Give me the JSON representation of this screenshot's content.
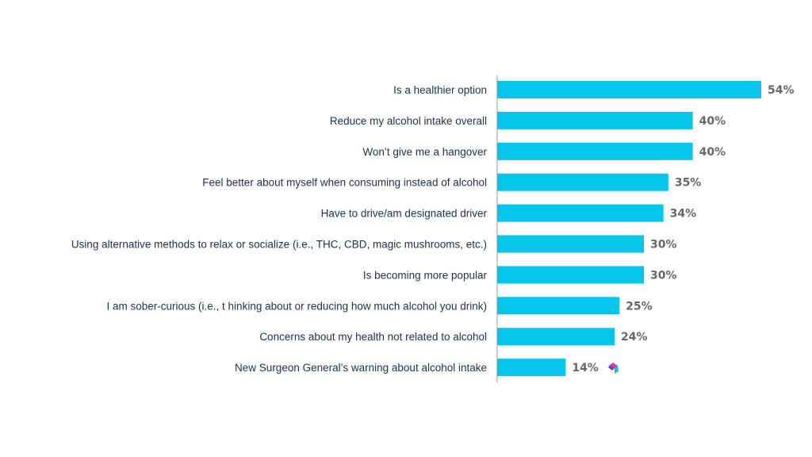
{
  "chart_data": {
    "type": "bar",
    "orientation": "horizontal",
    "categories": [
      "Is a healthier option",
      "Reduce my alcohol intake overall",
      "Won’t give me a hangover",
      "Feel better about myself when consuming instead of alcohol",
      "Have to drive/am designated driver",
      "Using alternative methods to relax or socialize (i.e., THC, CBD, magic mushrooms, etc.)",
      "Is becoming more popular",
      "I am sober-curious (i.e., t  hinking about or reducing how much alcohol you drink)",
      "Concerns about my health not related to alcohol",
      "New Surgeon General’s warning about alcohol intake"
    ],
    "values": [
      54,
      40,
      40,
      35,
      34,
      30,
      30,
      25,
      24,
      14
    ],
    "value_labels": [
      "54%",
      "40%",
      "40%",
      "35%",
      "34%",
      "30%",
      "30%",
      "25%",
      "24%",
      "14%"
    ],
    "xlim": [
      0,
      54
    ],
    "grid": false,
    "colors": {
      "bar": "#06c5ea",
      "category_text": "#1f2d4e",
      "value_text": "#666666",
      "axis": "#9a9a9a"
    }
  },
  "logo": {
    "name": "brand-logo-icon",
    "colors": [
      "#e8358f",
      "#5b3fd6",
      "#06c5ea"
    ]
  }
}
